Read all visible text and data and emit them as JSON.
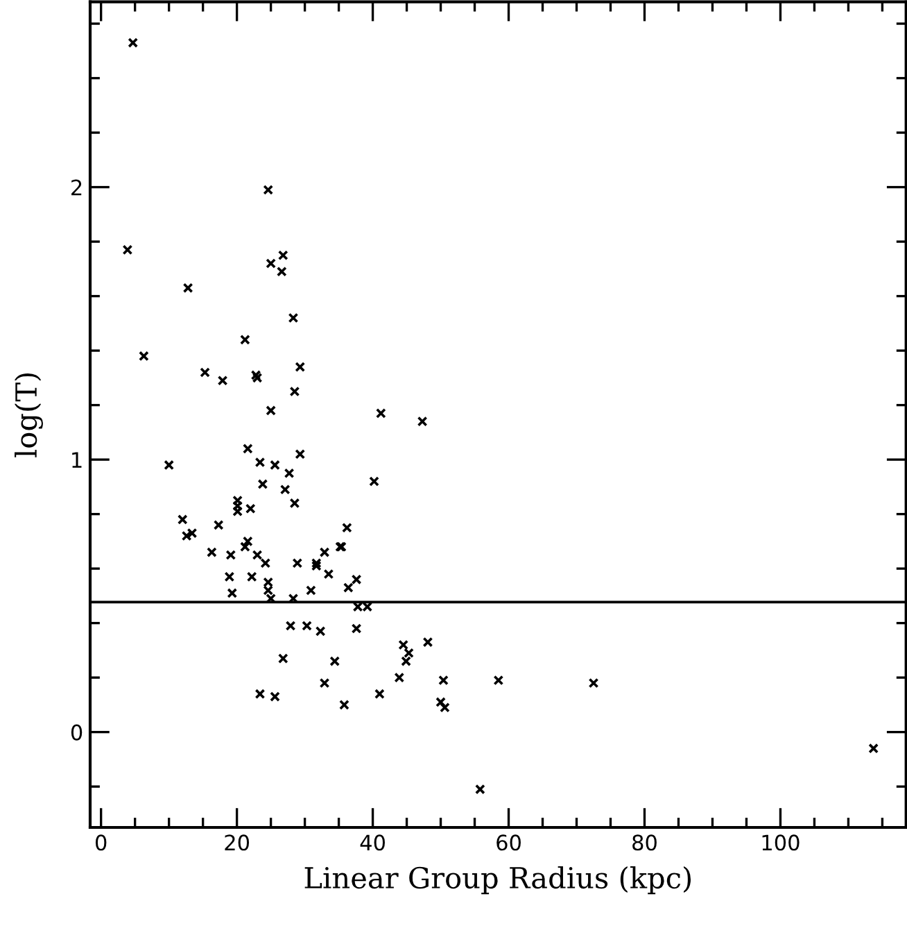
{
  "chart_data": {
    "type": "scatter",
    "xlabel": "Linear Group Radius (kpc)",
    "ylabel": "log(T)",
    "xlim": [
      -1.6,
      118.5
    ],
    "ylim": [
      -0.35,
      2.68
    ],
    "xticks": [
      0,
      20,
      40,
      60,
      80,
      100
    ],
    "yticks": [
      0,
      1,
      2
    ],
    "marker": "cross",
    "grid": false,
    "ref_lines": [
      {
        "axis": "y",
        "value": 0.477,
        "label": null,
        "color": "#000000",
        "line_style": "solid"
      }
    ],
    "series": [
      {
        "color": "#000000",
        "x": [
          4.7,
          3.9,
          24.6,
          6.3,
          12.8,
          25.0,
          26.8,
          26.6,
          28.3,
          21.2,
          29.3,
          15.3,
          17.9,
          22.8,
          23.0,
          28.5,
          25.0,
          41.2,
          47.3,
          10.0,
          21.6,
          29.3,
          25.6,
          23.4,
          27.7,
          23.8,
          27.1,
          40.2,
          20.1,
          20.1,
          20.1,
          22.0,
          28.5,
          12.0,
          12.6,
          13.4,
          17.3,
          36.2,
          16.3,
          19.1,
          21.2,
          21.6,
          23.0,
          24.2,
          28.9,
          31.7,
          31.7,
          32.9,
          35.2,
          35.4,
          18.9,
          22.2,
          24.6,
          24.6,
          19.3,
          25.0,
          28.3,
          30.9,
          33.5,
          36.4,
          37.6,
          27.9,
          30.3,
          32.3,
          37.6,
          37.8,
          39.2,
          26.8,
          34.4,
          32.9,
          23.4,
          25.6,
          35.8,
          41.0,
          43.9,
          44.5,
          45.3,
          44.9,
          48.1,
          50.4,
          50.0,
          50.6,
          55.8,
          58.5,
          72.5,
          113.7
        ],
        "values": [
          2.53,
          1.77,
          1.99,
          1.38,
          1.63,
          1.72,
          1.75,
          1.69,
          1.52,
          1.44,
          1.34,
          1.32,
          1.29,
          1.31,
          1.3,
          1.25,
          1.18,
          1.17,
          1.14,
          0.98,
          1.04,
          1.02,
          0.98,
          0.99,
          0.95,
          0.91,
          0.89,
          0.92,
          0.85,
          0.83,
          0.81,
          0.82,
          0.84,
          0.78,
          0.72,
          0.73,
          0.76,
          0.75,
          0.66,
          0.65,
          0.68,
          0.7,
          0.65,
          0.62,
          0.62,
          0.62,
          0.61,
          0.66,
          0.68,
          0.68,
          0.57,
          0.57,
          0.55,
          0.52,
          0.51,
          0.49,
          0.49,
          0.52,
          0.58,
          0.53,
          0.56,
          0.39,
          0.39,
          0.37,
          0.38,
          0.46,
          0.46,
          0.27,
          0.26,
          0.18,
          0.14,
          0.13,
          0.1,
          0.14,
          0.2,
          0.32,
          0.29,
          0.26,
          0.33,
          0.19,
          0.11,
          0.09,
          -0.21,
          0.19,
          0.18,
          -0.06
        ]
      }
    ]
  }
}
